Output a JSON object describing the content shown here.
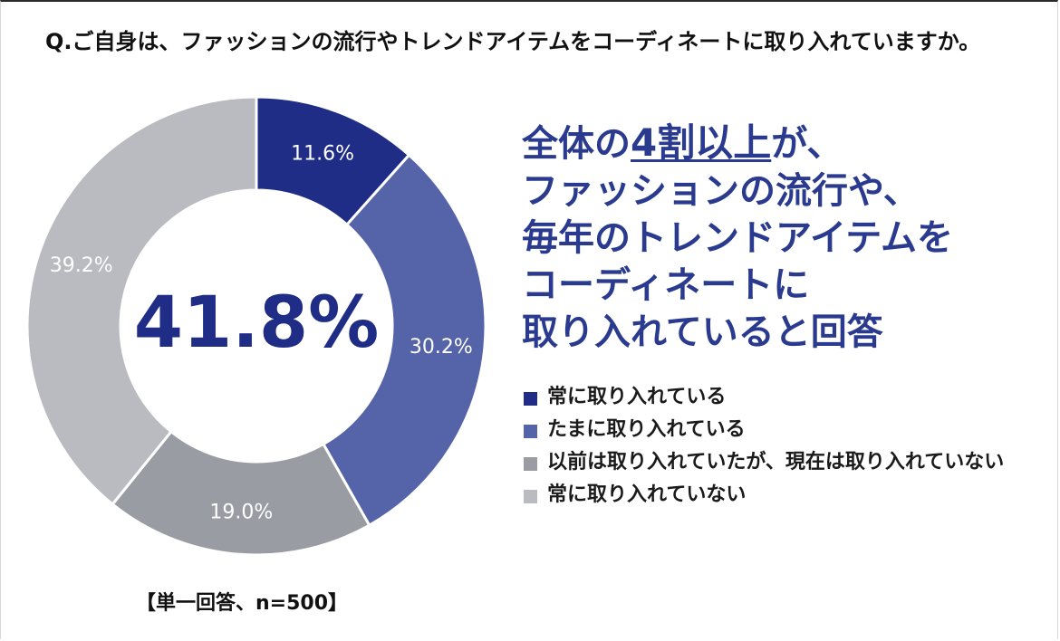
{
  "question": "Q.ご自身は、ファッションの流行やトレンドアイテムをコーディネートに取り入れていますか。",
  "center_value": "41.8%",
  "headline": {
    "prefix": "全体の",
    "highlight": "4割以上",
    "line1_suffix": "が、",
    "line2": "ファッションの流行や、",
    "line3": "毎年のトレンドアイテムを",
    "line4": "コーディネートに",
    "line5": "取り入れていると回答"
  },
  "note": "【単一回答、n=500】",
  "chart_data": {
    "type": "pie",
    "title": "",
    "categories": [
      "常に取り入れている",
      "たまに取り入れている",
      "以前は取り入れていたが、現在は取り入れていない",
      "常に取り入れていない"
    ],
    "values": [
      11.6,
      30.2,
      19.0,
      39.2
    ],
    "data_labels": [
      "11.6%",
      "30.2%",
      "19.0%",
      "39.2%"
    ],
    "colors": [
      "#1f2d86",
      "#5563a8",
      "#9a9ca3",
      "#b9bbc0"
    ],
    "unit": "%",
    "legend_position": "right"
  }
}
